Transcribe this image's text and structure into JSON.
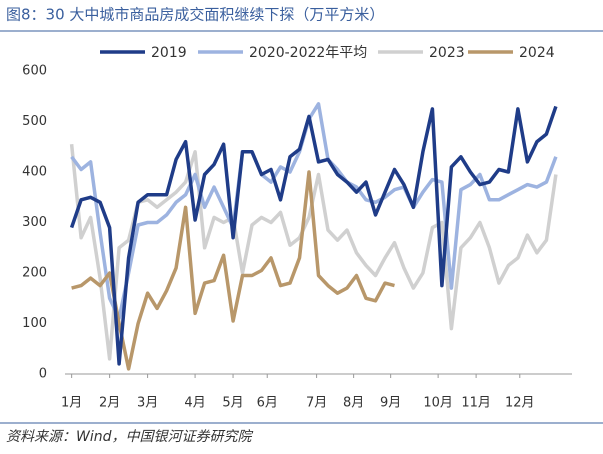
{
  "chart_data": {
    "type": "line",
    "title": "图8：30 大中城市商品房成交面积继续下探（万平方米）",
    "source": "资料来源：Wind，中国银河证券研究院",
    "x": [
      0,
      1,
      2,
      3,
      4,
      5,
      6,
      7,
      8,
      9,
      10,
      11,
      12,
      13,
      14,
      15,
      16,
      17,
      18,
      19,
      20,
      21,
      22,
      23,
      24,
      25,
      26,
      27,
      28,
      29,
      30,
      31,
      32,
      33,
      34,
      35,
      36,
      37,
      38,
      39,
      40,
      41,
      42,
      43,
      44,
      45,
      46,
      47,
      48,
      49,
      50,
      51
    ],
    "xlim": [
      -0.7,
      52.7
    ],
    "xticks": [
      {
        "value": 0,
        "label": "1月"
      },
      {
        "value": 4,
        "label": "2月"
      },
      {
        "value": 8,
        "label": "3月"
      },
      {
        "value": 13,
        "label": "4月"
      },
      {
        "value": 17,
        "label": "5月"
      },
      {
        "value": 20.6,
        "label": "6月"
      },
      {
        "value": 25.8,
        "label": "7月"
      },
      {
        "value": 29.7,
        "label": "8月"
      },
      {
        "value": 33.6,
        "label": "9月"
      },
      {
        "value": 38.6,
        "label": "10月"
      },
      {
        "value": 42.6,
        "label": "11月"
      },
      {
        "value": 47.2,
        "label": "12月"
      }
    ],
    "ylim": [
      0,
      600
    ],
    "yticks": [
      0,
      100,
      200,
      300,
      400,
      500,
      600
    ],
    "series": [
      {
        "name": "2019",
        "color": "#1f3c88",
        "values": [
          290,
          345,
          350,
          340,
          290,
          20,
          230,
          340,
          355,
          355,
          355,
          425,
          460,
          305,
          395,
          415,
          455,
          270,
          440,
          440,
          395,
          405,
          345,
          430,
          445,
          510,
          420,
          425,
          395,
          380,
          360,
          380,
          315,
          360,
          405,
          375,
          330,
          440,
          525,
          175,
          410,
          430,
          400,
          375,
          380,
          405,
          400,
          525,
          420,
          460,
          475,
          530
        ]
      },
      {
        "name": "2020-2022年平均",
        "color": "#9db3e0",
        "values": [
          430,
          405,
          420,
          280,
          150,
          110,
          200,
          295,
          300,
          300,
          315,
          340,
          355,
          395,
          330,
          370,
          330,
          290,
          440,
          440,
          395,
          380,
          410,
          400,
          440,
          505,
          535,
          425,
          405,
          380,
          370,
          345,
          340,
          350,
          365,
          370,
          330,
          360,
          385,
          380,
          170,
          365,
          375,
          395,
          345,
          345,
          355,
          365,
          375,
          370,
          380,
          430
        ]
      },
      {
        "name": "2023",
        "color": "#d0d0d0",
        "values": [
          455,
          270,
          310,
          190,
          30,
          250,
          265,
          340,
          345,
          330,
          345,
          360,
          380,
          440,
          250,
          310,
          300,
          310,
          200,
          295,
          310,
          300,
          320,
          255,
          270,
          310,
          395,
          285,
          265,
          285,
          240,
          215,
          195,
          230,
          260,
          210,
          170,
          200,
          290,
          300,
          90,
          250,
          270,
          300,
          250,
          180,
          215,
          230,
          275,
          240,
          265,
          395
        ]
      },
      {
        "name": "2024",
        "color": "#b8976a",
        "values": [
          170,
          175,
          190,
          175,
          200,
          100,
          10,
          100,
          160,
          130,
          165,
          210,
          330,
          120,
          180,
          185,
          235,
          105,
          195,
          195,
          205,
          230,
          175,
          180,
          230,
          400,
          195,
          175,
          160,
          170,
          195,
          150,
          145,
          180,
          175,
          null,
          null,
          null,
          null,
          null,
          null,
          null,
          null,
          null,
          null,
          null,
          null,
          null,
          null,
          null,
          null,
          null
        ]
      }
    ]
  }
}
